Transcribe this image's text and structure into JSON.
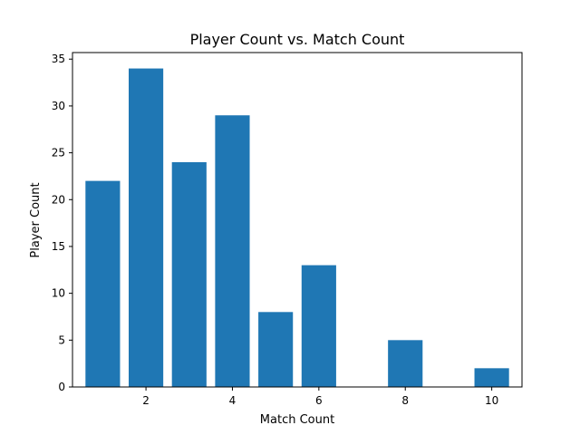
{
  "chart_data": {
    "type": "bar",
    "title": "Player Count vs. Match Count",
    "xlabel": "Match Count",
    "ylabel": "Player Count",
    "x": [
      1,
      2,
      3,
      4,
      5,
      6,
      8,
      10
    ],
    "values": [
      22,
      34,
      24,
      29,
      8,
      13,
      5,
      2
    ],
    "xlim": [
      0.3,
      10.7
    ],
    "ylim": [
      0,
      35.7
    ],
    "xticks": [
      2,
      4,
      6,
      8,
      10
    ],
    "yticks": [
      0,
      5,
      10,
      15,
      20,
      25,
      30,
      35
    ],
    "bar_color": "#1f77b4",
    "grid": false
  }
}
